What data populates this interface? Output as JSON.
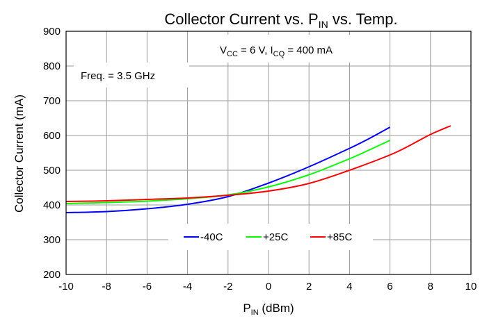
{
  "chart_data": {
    "type": "line",
    "title": {
      "main": "Collector Current vs. P",
      "sub": "IN",
      "tail": " vs. Temp."
    },
    "xlabel": {
      "main": "P",
      "sub": "IN",
      "tail": " (dBm)"
    },
    "ylabel": "Collector Current (mA)",
    "xlim": [
      -10,
      10
    ],
    "ylim": [
      200,
      900
    ],
    "xticks": [
      -10,
      -8,
      -6,
      -4,
      -2,
      0,
      2,
      4,
      6,
      8,
      10
    ],
    "yticks": [
      200,
      300,
      400,
      500,
      600,
      700,
      800,
      900
    ],
    "grid": true,
    "legend_position": "bottom-center",
    "annotations": {
      "conditions": {
        "v": "V",
        "v_sub": "CC",
        "mid": " = 6 V, I",
        "i_sub": "CQ",
        "tail": " = 400 mA"
      },
      "freq": "Freq. = 3.5 GHz"
    },
    "series": [
      {
        "name": "-40C",
        "color": "#0000ff",
        "points": [
          [
            -10,
            378
          ],
          [
            -8,
            381
          ],
          [
            -6,
            389
          ],
          [
            -4,
            402
          ],
          [
            -2,
            424
          ],
          [
            0,
            463
          ],
          [
            2,
            510
          ],
          [
            4,
            563
          ],
          [
            5,
            592
          ],
          [
            6,
            624
          ]
        ]
      },
      {
        "name": "+25C",
        "color": "#00ff00",
        "points": [
          [
            -10,
            404
          ],
          [
            -8,
            407
          ],
          [
            -6,
            411
          ],
          [
            -4,
            418
          ],
          [
            -2,
            429
          ],
          [
            0,
            452
          ],
          [
            2,
            487
          ],
          [
            4,
            533
          ],
          [
            5,
            559
          ],
          [
            6,
            586
          ]
        ]
      },
      {
        "name": "+85C",
        "color": "#ff0000",
        "points": [
          [
            -10,
            410
          ],
          [
            -8,
            412
          ],
          [
            -6,
            416
          ],
          [
            -4,
            420
          ],
          [
            -2,
            428
          ],
          [
            0,
            440
          ],
          [
            2,
            462
          ],
          [
            4,
            500
          ],
          [
            6,
            544
          ],
          [
            7,
            572
          ],
          [
            8,
            603
          ],
          [
            9,
            628
          ]
        ]
      }
    ]
  }
}
